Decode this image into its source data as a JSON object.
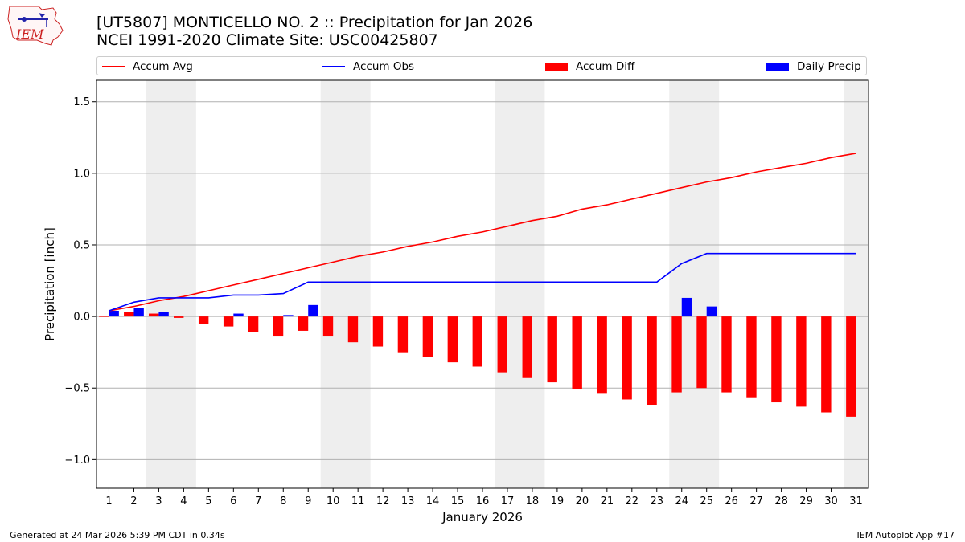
{
  "header": {
    "title_line1": "[UT5807] MONTICELLO NO. 2 :: Precipitation for Jan 2026",
    "title_line2": "NCEI 1991-2020 Climate Site: USC00425807",
    "logo_text": "IEM"
  },
  "legend": {
    "items": [
      {
        "label": "Accum Avg",
        "kind": "line",
        "color": "#ff0000"
      },
      {
        "label": "Accum Obs",
        "kind": "line",
        "color": "#0000ff"
      },
      {
        "label": "Accum Diff",
        "kind": "bar",
        "color": "#ff0000"
      },
      {
        "label": "Daily Precip",
        "kind": "bar",
        "color": "#0000ff"
      }
    ]
  },
  "footer": {
    "left": "Generated at 24 Mar 2026 5:39 PM CDT in 0.34s",
    "right": "IEM Autoplot App #17"
  },
  "chart_data": {
    "type": "bar",
    "title": "[UT5807] MONTICELLO NO. 2 :: Precipitation for Jan 2026",
    "subtitle": "NCEI 1991-2020 Climate Site: USC00425807",
    "xlabel": "January 2026",
    "ylabel": "Precipitation [inch]",
    "x": [
      1,
      2,
      3,
      4,
      5,
      6,
      7,
      8,
      9,
      10,
      11,
      12,
      13,
      14,
      15,
      16,
      17,
      18,
      19,
      20,
      21,
      22,
      23,
      24,
      25,
      26,
      27,
      28,
      29,
      30,
      31
    ],
    "xlim": [
      0.5,
      31.5
    ],
    "ylim": [
      -1.2,
      1.65
    ],
    "yticks": [
      -1.0,
      -0.5,
      0.0,
      0.5,
      1.0,
      1.5
    ],
    "ytick_labels": [
      "−1.0",
      "−0.5",
      "0.0",
      "0.5",
      "1.0",
      "1.5"
    ],
    "grid": "y",
    "legend_position": "top",
    "weekend_shading": [
      [
        2.5,
        4.5
      ],
      [
        9.5,
        11.5
      ],
      [
        16.5,
        18.5
      ],
      [
        23.5,
        25.5
      ],
      [
        30.5,
        31.5
      ]
    ],
    "series": [
      {
        "name": "Accum Avg",
        "kind": "line",
        "color": "#ff0000",
        "values": [
          0.04,
          0.07,
          0.11,
          0.14,
          0.18,
          0.22,
          0.26,
          0.3,
          0.34,
          0.38,
          0.42,
          0.45,
          0.49,
          0.52,
          0.56,
          0.59,
          0.63,
          0.67,
          0.7,
          0.75,
          0.78,
          0.82,
          0.86,
          0.9,
          0.94,
          0.97,
          1.01,
          1.04,
          1.07,
          1.11,
          1.14
        ]
      },
      {
        "name": "Accum Obs",
        "kind": "line",
        "color": "#0000ff",
        "values": [
          0.04,
          0.1,
          0.13,
          0.13,
          0.13,
          0.15,
          0.15,
          0.16,
          0.24,
          0.24,
          0.24,
          0.24,
          0.24,
          0.24,
          0.24,
          0.24,
          0.24,
          0.24,
          0.24,
          0.24,
          0.24,
          0.24,
          0.24,
          0.37,
          0.44,
          0.44,
          0.44,
          0.44,
          0.44,
          0.44,
          0.44
        ]
      },
      {
        "name": "Accum Diff",
        "kind": "bar",
        "color": "#ff0000",
        "values": [
          0.0,
          0.03,
          0.02,
          -0.01,
          -0.05,
          -0.07,
          -0.11,
          -0.14,
          -0.1,
          -0.14,
          -0.18,
          -0.21,
          -0.25,
          -0.28,
          -0.32,
          -0.35,
          -0.39,
          -0.43,
          -0.46,
          -0.51,
          -0.54,
          -0.58,
          -0.62,
          -0.53,
          -0.5,
          -0.53,
          -0.57,
          -0.6,
          -0.63,
          -0.67,
          -0.7
        ]
      },
      {
        "name": "Daily Precip",
        "kind": "bar",
        "color": "#0000ff",
        "values": [
          0.04,
          0.06,
          0.03,
          0,
          0,
          0.02,
          0,
          0.01,
          0.08,
          0,
          0,
          0,
          0,
          0,
          0,
          0,
          0,
          0,
          0,
          0,
          0,
          0,
          0,
          0.13,
          0.07,
          0,
          0,
          0,
          0,
          0,
          0
        ]
      }
    ]
  }
}
